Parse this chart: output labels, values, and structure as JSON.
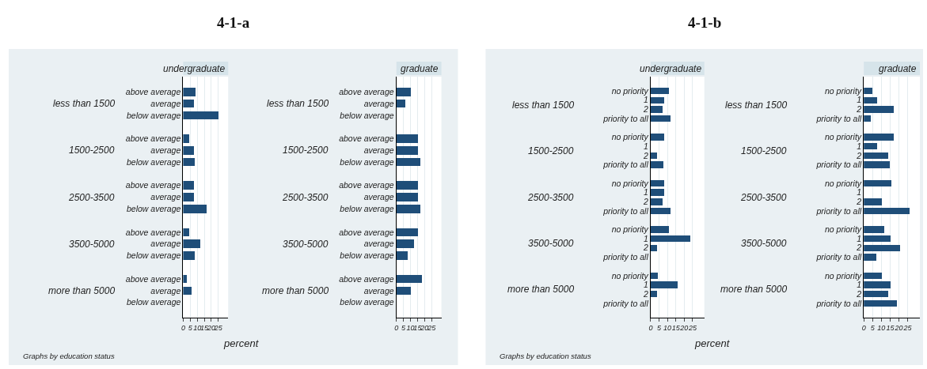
{
  "chart_data": [
    {
      "type": "bar",
      "orientation": "horizontal",
      "title": "4-1-a",
      "subtitle": "undergraduate",
      "xlabel": "percent",
      "xlim": [
        0,
        32
      ],
      "xticks": [
        0,
        5,
        10,
        15,
        20,
        25
      ],
      "grid": "x",
      "color": "#1f4e79",
      "annotations": [
        "less than 1500",
        "1500-2500",
        "2500-3500",
        "3500-5000",
        "more than 5000",
        "Graphs by education status"
      ],
      "categories": [
        "above average",
        "average",
        "below average",
        null,
        "above average",
        "average",
        "below average",
        null,
        "above average",
        "average",
        "below average",
        null,
        "above average",
        "average",
        "below average",
        null,
        "above average",
        "average",
        "below average"
      ],
      "values": [
        9.1,
        8,
        25.4,
        null,
        4.5,
        8,
        8.7,
        null,
        7.6,
        8,
        17,
        null,
        4.5,
        12.1,
        8.7,
        null,
        3,
        6.3,
        null
      ]
    },
    {
      "type": "bar",
      "orientation": "horizontal",
      "subtitle": "graduate",
      "xlim": [
        0,
        32
      ],
      "xticks": [
        0,
        5,
        10,
        15,
        20,
        25
      ],
      "grid": "x",
      "color": "#1f4e79",
      "annotations": [
        "less than 1500",
        "1500-2500",
        "2500-3500",
        "3500-5000",
        "more than 5000"
      ],
      "categories": [
        "above average",
        "average",
        "below average",
        null,
        "above average",
        "average",
        "below average",
        null,
        "above average",
        "average",
        "below average",
        null,
        "above average",
        "average",
        "below average",
        null,
        "above average",
        "average",
        "below average"
      ],
      "values": [
        10,
        6,
        null,
        null,
        15,
        15.3,
        16.9,
        null,
        15,
        15.3,
        16.9,
        null,
        15,
        12.1,
        8.1,
        null,
        17.8,
        10.4,
        null
      ]
    },
    {
      "type": "bar",
      "orientation": "horizontal",
      "title": "4-1-b",
      "subtitle": "undergraduate",
      "xlabel": "percent",
      "xlim": [
        0,
        32
      ],
      "xticks": [
        0,
        5,
        10,
        15,
        20,
        25
      ],
      "grid": "x",
      "color": "#1f4e79",
      "annotations": [
        "less than 1500",
        "1500-2500",
        "2500-3500",
        "3500-5000",
        "more than 5000",
        "Graphs by education status"
      ],
      "categories": [
        "no priority",
        "1",
        "2",
        "priority to all",
        null,
        "no priority",
        "1",
        "2",
        "priority to all",
        null,
        "no priority",
        "1",
        "2",
        "priority to all",
        null,
        "no priority",
        "1",
        "2",
        "priority to all",
        null,
        "no priority",
        "1",
        "2",
        "priority to all"
      ],
      "values": [
        10.9,
        8,
        7.3,
        11.7,
        null,
        8,
        null,
        3.8,
        7.7,
        null,
        8,
        8,
        7.3,
        11.7,
        null,
        10.9,
        23.8,
        3.8,
        null,
        null,
        4.2,
        15.9,
        3.8,
        null
      ]
    },
    {
      "type": "bar",
      "orientation": "horizontal",
      "subtitle": "graduate",
      "xlim": [
        0,
        32
      ],
      "xticks": [
        0,
        5,
        10,
        15,
        20,
        25
      ],
      "grid": "x",
      "color": "#1f4e79",
      "annotations": [
        "less than 1500",
        "1500-2500",
        "2500-3500",
        "3500-5000",
        "more than 5000"
      ],
      "categories": [
        "no priority",
        "1",
        "2",
        "priority to all",
        null,
        "no priority",
        "1",
        "2",
        "priority to all",
        null,
        "no priority",
        "1",
        "2",
        "priority to all",
        null,
        "no priority",
        "1",
        "2",
        "priority to all",
        null,
        "no priority",
        "1",
        "2",
        "priority to all"
      ],
      "values": [
        5.1,
        7.7,
        17.3,
        3.9,
        null,
        17,
        7.7,
        13.8,
        14.9,
        null,
        15.8,
        null,
        10.6,
        26,
        null,
        11.8,
        15.3,
        20.7,
        7.3,
        null,
        10.6,
        15.3,
        13.8,
        18.8
      ]
    }
  ]
}
